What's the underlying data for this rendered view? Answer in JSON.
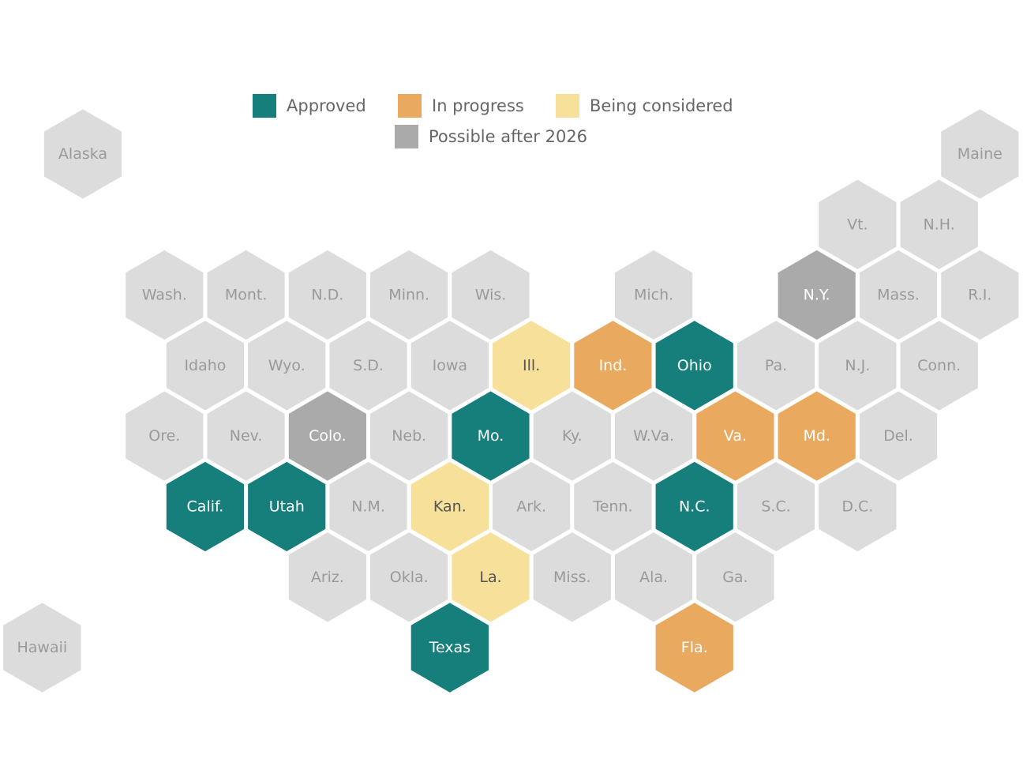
{
  "colors": {
    "approved": "#167f7b",
    "in_progress": "#e9a95f",
    "considered": "#f7e19a",
    "possible": "#aaaaaa",
    "none": "#dcdcdc"
  },
  "legend": [
    {
      "key": "approved",
      "label": "Approved"
    },
    {
      "key": "in_progress",
      "label": "In progress"
    },
    {
      "key": "considered",
      "label": "Being considered"
    },
    {
      "key": "possible",
      "label": "Possible after 2026"
    }
  ],
  "states": [
    {
      "name": "Alaska",
      "col": 0,
      "row": 0,
      "status": "none"
    },
    {
      "name": "Maine",
      "col": 22,
      "row": 0,
      "status": "none"
    },
    {
      "name": "Vt.",
      "col": 19,
      "row": 1,
      "status": "none"
    },
    {
      "name": "N.H.",
      "col": 21,
      "row": 1,
      "status": "none"
    },
    {
      "name": "Wash.",
      "col": 2,
      "row": 2,
      "status": "none"
    },
    {
      "name": "Mont.",
      "col": 4,
      "row": 2,
      "status": "none"
    },
    {
      "name": "N.D.",
      "col": 6,
      "row": 2,
      "status": "none"
    },
    {
      "name": "Minn.",
      "col": 8,
      "row": 2,
      "status": "none"
    },
    {
      "name": "Wis.",
      "col": 10,
      "row": 2,
      "status": "none"
    },
    {
      "name": "Mich.",
      "col": 14,
      "row": 2,
      "status": "none"
    },
    {
      "name": "N.Y.",
      "col": 18,
      "row": 2,
      "status": "possible"
    },
    {
      "name": "Mass.",
      "col": 20,
      "row": 2,
      "status": "none"
    },
    {
      "name": "R.I.",
      "col": 22,
      "row": 2,
      "status": "none"
    },
    {
      "name": "Idaho",
      "col": 3,
      "row": 3,
      "status": "none"
    },
    {
      "name": "Wyo.",
      "col": 5,
      "row": 3,
      "status": "none"
    },
    {
      "name": "S.D.",
      "col": 7,
      "row": 3,
      "status": "none"
    },
    {
      "name": "Iowa",
      "col": 9,
      "row": 3,
      "status": "none"
    },
    {
      "name": "Ill.",
      "col": 11,
      "row": 3,
      "status": "considered"
    },
    {
      "name": "Ind.",
      "col": 13,
      "row": 3,
      "status": "in_progress"
    },
    {
      "name": "Ohio",
      "col": 15,
      "row": 3,
      "status": "approved"
    },
    {
      "name": "Pa.",
      "col": 17,
      "row": 3,
      "status": "none"
    },
    {
      "name": "N.J.",
      "col": 19,
      "row": 3,
      "status": "none"
    },
    {
      "name": "Conn.",
      "col": 21,
      "row": 3,
      "status": "none"
    },
    {
      "name": "Ore.",
      "col": 2,
      "row": 4,
      "status": "none"
    },
    {
      "name": "Nev.",
      "col": 4,
      "row": 4,
      "status": "none"
    },
    {
      "name": "Colo.",
      "col": 6,
      "row": 4,
      "status": "possible"
    },
    {
      "name": "Neb.",
      "col": 8,
      "row": 4,
      "status": "none"
    },
    {
      "name": "Mo.",
      "col": 10,
      "row": 4,
      "status": "approved"
    },
    {
      "name": "Ky.",
      "col": 12,
      "row": 4,
      "status": "none"
    },
    {
      "name": "W.Va.",
      "col": 14,
      "row": 4,
      "status": "none"
    },
    {
      "name": "Va.",
      "col": 16,
      "row": 4,
      "status": "in_progress"
    },
    {
      "name": "Md.",
      "col": 18,
      "row": 4,
      "status": "in_progress"
    },
    {
      "name": "Del.",
      "col": 20,
      "row": 4,
      "status": "none"
    },
    {
      "name": "Calif.",
      "col": 3,
      "row": 5,
      "status": "approved"
    },
    {
      "name": "Utah",
      "col": 5,
      "row": 5,
      "status": "approved"
    },
    {
      "name": "N.M.",
      "col": 7,
      "row": 5,
      "status": "none"
    },
    {
      "name": "Kan.",
      "col": 9,
      "row": 5,
      "status": "considered"
    },
    {
      "name": "Ark.",
      "col": 11,
      "row": 5,
      "status": "none"
    },
    {
      "name": "Tenn.",
      "col": 13,
      "row": 5,
      "status": "none"
    },
    {
      "name": "N.C.",
      "col": 15,
      "row": 5,
      "status": "approved"
    },
    {
      "name": "S.C.",
      "col": 17,
      "row": 5,
      "status": "none"
    },
    {
      "name": "D.C.",
      "col": 19,
      "row": 5,
      "status": "none"
    },
    {
      "name": "Ariz.",
      "col": 6,
      "row": 6,
      "status": "none"
    },
    {
      "name": "Okla.",
      "col": 8,
      "row": 6,
      "status": "none"
    },
    {
      "name": "La.",
      "col": 10,
      "row": 6,
      "status": "considered"
    },
    {
      "name": "Miss.",
      "col": 12,
      "row": 6,
      "status": "none"
    },
    {
      "name": "Ala.",
      "col": 14,
      "row": 6,
      "status": "none"
    },
    {
      "name": "Ga.",
      "col": 16,
      "row": 6,
      "status": "none"
    },
    {
      "name": "Hawaii",
      "col": -1,
      "row": 7,
      "status": "none"
    },
    {
      "name": "Texas",
      "col": 9,
      "row": 7,
      "status": "approved"
    },
    {
      "name": "Fla.",
      "col": 15,
      "row": 7,
      "status": "in_progress"
    }
  ]
}
